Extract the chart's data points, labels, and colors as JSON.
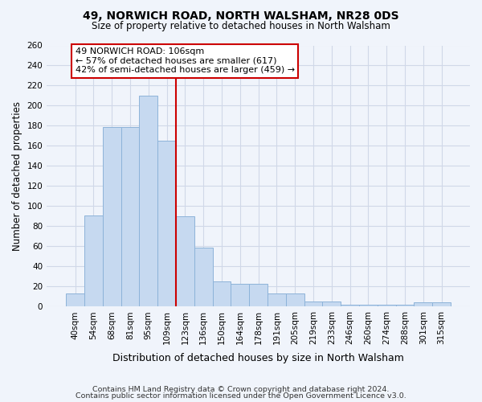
{
  "title": "49, NORWICH ROAD, NORTH WALSHAM, NR28 0DS",
  "subtitle": "Size of property relative to detached houses in North Walsham",
  "xlabel": "Distribution of detached houses by size in North Walsham",
  "ylabel": "Number of detached properties",
  "bar_labels": [
    "40sqm",
    "54sqm",
    "68sqm",
    "81sqm",
    "95sqm",
    "109sqm",
    "123sqm",
    "136sqm",
    "150sqm",
    "164sqm",
    "178sqm",
    "191sqm",
    "205sqm",
    "219sqm",
    "233sqm",
    "246sqm",
    "260sqm",
    "274sqm",
    "288sqm",
    "301sqm",
    "315sqm"
  ],
  "bar_values": [
    13,
    91,
    179,
    179,
    210,
    165,
    90,
    59,
    25,
    23,
    23,
    13,
    13,
    5,
    5,
    2,
    2,
    2,
    2,
    4,
    4
  ],
  "bar_color": "#c6d9f0",
  "bar_edge_color": "#8db3d9",
  "vline_x": 5.5,
  "vline_color": "#cc0000",
  "annotation_title": "49 NORWICH ROAD: 106sqm",
  "annotation_line1": "← 57% of detached houses are smaller (617)",
  "annotation_line2": "42% of semi-detached houses are larger (459) →",
  "annotation_box_color": "white",
  "annotation_box_edge": "#cc0000",
  "ylim": [
    0,
    260
  ],
  "yticks": [
    0,
    20,
    40,
    60,
    80,
    100,
    120,
    140,
    160,
    180,
    200,
    220,
    240,
    260
  ],
  "footer1": "Contains HM Land Registry data © Crown copyright and database right 2024.",
  "footer2": "Contains public sector information licensed under the Open Government Licence v3.0.",
  "bg_color": "#f0f4fb",
  "grid_color": "#d0d8e8",
  "title_fontsize": 10,
  "subtitle_fontsize": 8.5,
  "ylabel_fontsize": 8.5,
  "xlabel_fontsize": 9,
  "tick_fontsize": 7.5,
  "footer_fontsize": 6.8
}
